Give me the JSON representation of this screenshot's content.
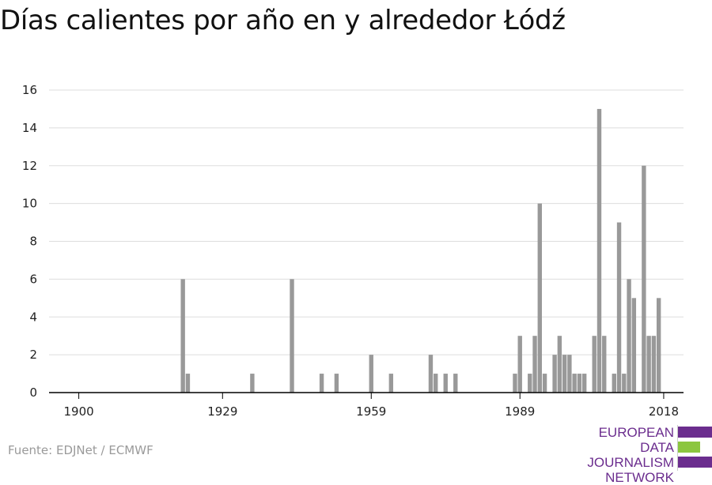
{
  "title": "Días calientes por año en y alrededor Łódź",
  "source": "Fuente: EDJNet / ECMWF",
  "logo": {
    "lines": [
      "EUROPEAN",
      "DATA JOURNALISM",
      "NETWORK"
    ],
    "colors": {
      "text": "#6b2d8e",
      "bar_purple": "#6b2d8e",
      "bar_green": "#8cc63f"
    }
  },
  "colors": {
    "bar": "#999999",
    "grid": "#dddddd",
    "axis": "#000000"
  },
  "chart_data": {
    "type": "bar",
    "xlim": [
      1894,
      2022
    ],
    "ylim": [
      0,
      16
    ],
    "x_ticks": [
      1900,
      1929,
      1959,
      1989,
      2018
    ],
    "y_ticks": [
      0,
      2,
      4,
      6,
      8,
      10,
      12,
      14,
      16
    ],
    "grid": true,
    "x": [
      1921,
      1922,
      1935,
      1943,
      1949,
      1952,
      1959,
      1963,
      1971,
      1972,
      1974,
      1976,
      1988,
      1989,
      1991,
      1992,
      1993,
      1994,
      1996,
      1997,
      1998,
      1999,
      2000,
      2001,
      2002,
      2004,
      2005,
      2006,
      2008,
      2009,
      2010,
      2011,
      2012,
      2014,
      2015,
      2016,
      2017
    ],
    "values": [
      6,
      1,
      1,
      6,
      1,
      1,
      2,
      1,
      2,
      1,
      1,
      1,
      1,
      3,
      1,
      3,
      10,
      1,
      2,
      3,
      2,
      2,
      1,
      1,
      1,
      3,
      15,
      3,
      1,
      9,
      1,
      6,
      5,
      12,
      3,
      3,
      5
    ]
  }
}
